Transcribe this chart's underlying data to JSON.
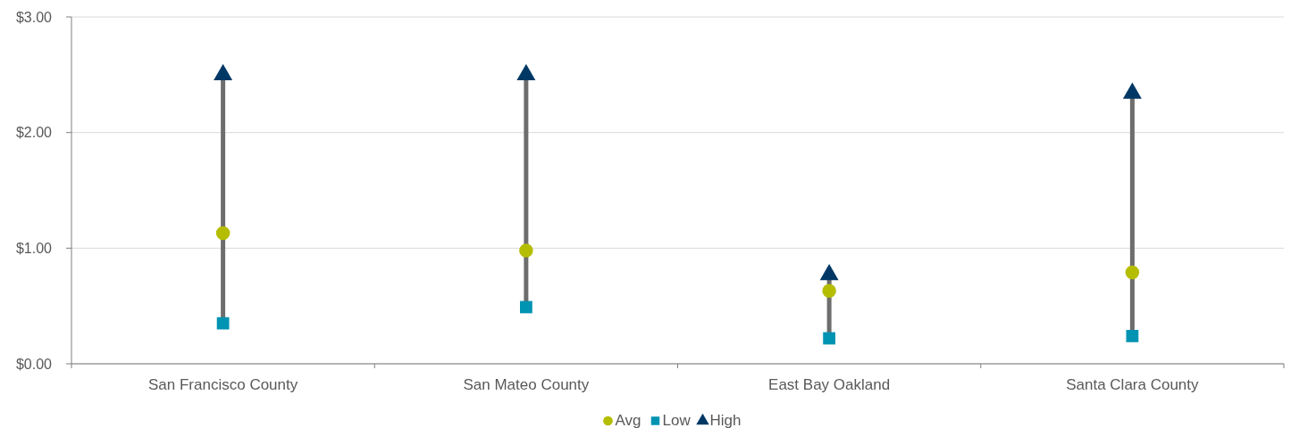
{
  "chart_data": {
    "type": "scatter",
    "categories": [
      "San Francisco County",
      "San Mateo County",
      "East Bay Oakland",
      "Santa Clara County"
    ],
    "series": [
      {
        "name": "Avg",
        "color": "#b5bd00",
        "marker": "circle",
        "values": [
          1.13,
          0.98,
          0.63,
          0.79
        ]
      },
      {
        "name": "Low",
        "color": "#0093b2",
        "marker": "square",
        "values": [
          0.35,
          0.49,
          0.22,
          0.24
        ]
      },
      {
        "name": "High",
        "color": "#003865",
        "marker": "triangle",
        "values": [
          2.5,
          2.5,
          0.77,
          2.34
        ]
      }
    ],
    "ylim": [
      0,
      3
    ],
    "yticks": [
      {
        "value": 0,
        "label": "$0.00"
      },
      {
        "value": 1,
        "label": "$1.00"
      },
      {
        "value": 2,
        "label": "$2.00"
      },
      {
        "value": 3,
        "label": "$3.00"
      }
    ],
    "grid": "y",
    "legend": "bottom"
  }
}
